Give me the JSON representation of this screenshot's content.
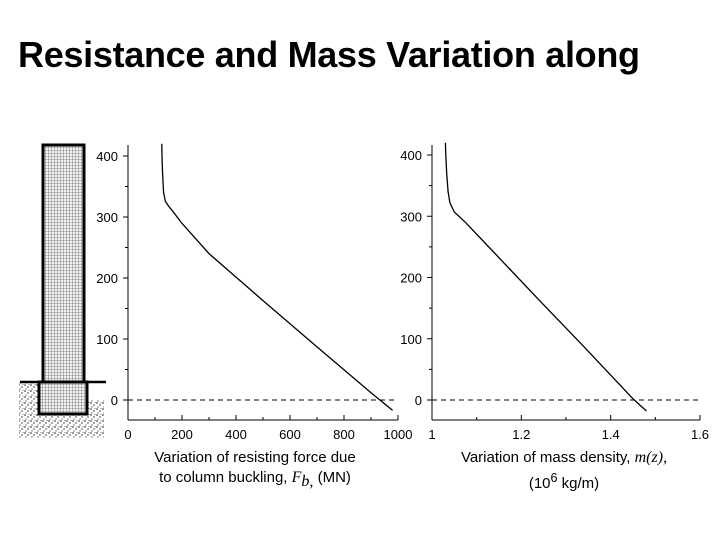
{
  "title": "Resistance and Mass Variation along",
  "captions": {
    "left": {
      "line1": "Variation of resisting force due",
      "line2_prefix": "to column buckling, ",
      "symbol": "F",
      "subscript": "b,",
      "unit": " (MN)"
    },
    "right": {
      "line1_prefix": "Variation of mass density, ",
      "symbol": "m(z),",
      "line2_prefix": "(10",
      "exponent": "6",
      "line2_suffix": " kg/m)"
    }
  },
  "chart_data": [
    {
      "type": "line",
      "name": "resisting-force",
      "title": "",
      "xlabel": "Variation of resisting force due to column buckling, Fb, (MN)",
      "ylabel": "",
      "xlim": [
        0,
        1000
      ],
      "ylim": [
        0,
        400
      ],
      "x_ticks": [
        0,
        200,
        400,
        600,
        800,
        1000
      ],
      "y_ticks": [
        0,
        100,
        200,
        300,
        400
      ],
      "series": [
        {
          "name": "Fb",
          "x": [
            125,
            126,
            128,
            132,
            138,
            150,
            170,
            195,
            300,
            500,
            700,
            900,
            980
          ],
          "y": [
            420,
            400,
            370,
            340,
            326,
            318,
            307,
            292,
            240,
            163,
            87,
            12,
            -17
          ]
        }
      ],
      "reference_line": {
        "y": 0,
        "style": "dashed"
      },
      "grid": false
    },
    {
      "type": "line",
      "name": "mass-density",
      "title": "",
      "xlabel": "Variation of mass density, m(z), (10^6 kg/m)",
      "ylabel": "",
      "xlim": [
        1,
        1.6
      ],
      "ylim": [
        0,
        400
      ],
      "x_ticks": [
        1,
        1.2,
        1.4,
        1.6
      ],
      "x_tick_labels": [
        "1",
        "1.2",
        "1.4",
        "1.6"
      ],
      "y_ticks": [
        0,
        100,
        200,
        300,
        400
      ],
      "series": [
        {
          "name": "m(z)",
          "x": [
            1.03,
            1.031,
            1.033,
            1.036,
            1.04,
            1.05,
            1.075,
            1.14,
            1.24,
            1.34,
            1.45,
            1.48
          ],
          "y": [
            420,
            400,
            370,
            340,
            322,
            307,
            290,
            240,
            163,
            87,
            2,
            -18
          ]
        }
      ],
      "reference_line": {
        "y": 0,
        "style": "dashed"
      },
      "grid": false
    }
  ]
}
